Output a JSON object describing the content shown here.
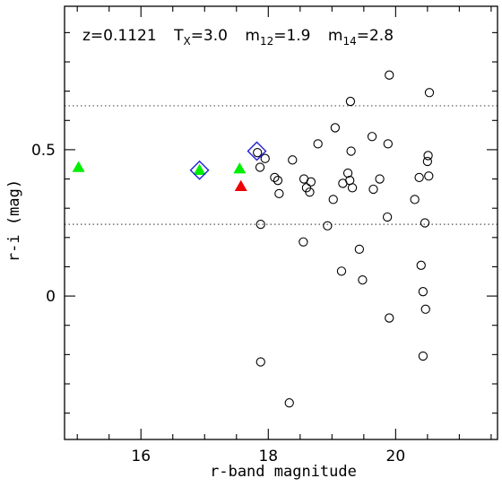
{
  "chart_data": {
    "type": "scatter",
    "xlabel": "r-band magnitude",
    "ylabel": "r-i (mag)",
    "xlim": [
      14.8,
      21.6
    ],
    "ylim": [
      -0.49,
      0.99
    ],
    "x_ticks": [
      16,
      18,
      20
    ],
    "y_ticks": [
      0,
      0.5
    ],
    "x_tick_labels": [
      "16",
      "18",
      "20"
    ],
    "y_tick_labels": [
      "0",
      "0.5"
    ],
    "x_minor_step": 0.5,
    "y_minor_step": 0.1,
    "reference_lines_y": [
      0.65,
      0.245
    ],
    "annotation": {
      "z_text": "z=0.1121",
      "tx_main": "T",
      "tx_sub": "X",
      "tx_val": "=3.0",
      "m12_main": "m",
      "m12_sub": "12",
      "m12_val": "=1.9",
      "m14_main": "m",
      "m14_sub": "14",
      "m14_val": "=2.8"
    },
    "series": [
      {
        "marker": "open-circle",
        "color": "#000000",
        "points": [
          [
            17.83,
            0.49
          ],
          [
            17.87,
            0.44
          ],
          [
            17.95,
            0.47
          ],
          [
            17.88,
            0.245
          ],
          [
            17.88,
            -0.225
          ],
          [
            18.1,
            0.405
          ],
          [
            18.15,
            0.395
          ],
          [
            18.17,
            0.35
          ],
          [
            18.33,
            -0.365
          ],
          [
            18.38,
            0.465
          ],
          [
            18.56,
            0.4
          ],
          [
            18.6,
            0.37
          ],
          [
            18.65,
            0.355
          ],
          [
            18.67,
            0.39
          ],
          [
            18.55,
            0.185
          ],
          [
            18.78,
            0.52
          ],
          [
            18.93,
            0.24
          ],
          [
            19.02,
            0.33
          ],
          [
            19.05,
            0.575
          ],
          [
            19.17,
            0.385
          ],
          [
            19.15,
            0.085
          ],
          [
            19.25,
            0.42
          ],
          [
            19.28,
            0.395
          ],
          [
            19.29,
            0.665
          ],
          [
            19.3,
            0.495
          ],
          [
            19.32,
            0.37
          ],
          [
            19.43,
            0.16
          ],
          [
            19.48,
            0.055
          ],
          [
            19.63,
            0.545
          ],
          [
            19.65,
            0.365
          ],
          [
            19.75,
            0.4
          ],
          [
            19.87,
            0.27
          ],
          [
            19.88,
            0.52
          ],
          [
            19.9,
            0.755
          ],
          [
            19.9,
            -0.075
          ],
          [
            20.3,
            0.33
          ],
          [
            20.37,
            0.405
          ],
          [
            20.4,
            0.105
          ],
          [
            20.43,
            0.015
          ],
          [
            20.43,
            -0.205
          ],
          [
            20.46,
            0.25
          ],
          [
            20.47,
            -0.045
          ],
          [
            20.5,
            0.46
          ],
          [
            20.51,
            0.48
          ],
          [
            20.52,
            0.41
          ],
          [
            20.53,
            0.695
          ]
        ]
      },
      {
        "marker": "filled-triangle",
        "color": "#00ee00",
        "points": [
          [
            15.02,
            0.44
          ],
          [
            16.92,
            0.43
          ],
          [
            17.55,
            0.435
          ]
        ]
      },
      {
        "marker": "filled-triangle",
        "color": "#ee0000",
        "points": [
          [
            17.57,
            0.375
          ]
        ]
      },
      {
        "marker": "open-diamond",
        "color": "#1f1fd6",
        "points": [
          [
            16.92,
            0.43
          ],
          [
            17.82,
            0.495
          ]
        ]
      }
    ]
  }
}
